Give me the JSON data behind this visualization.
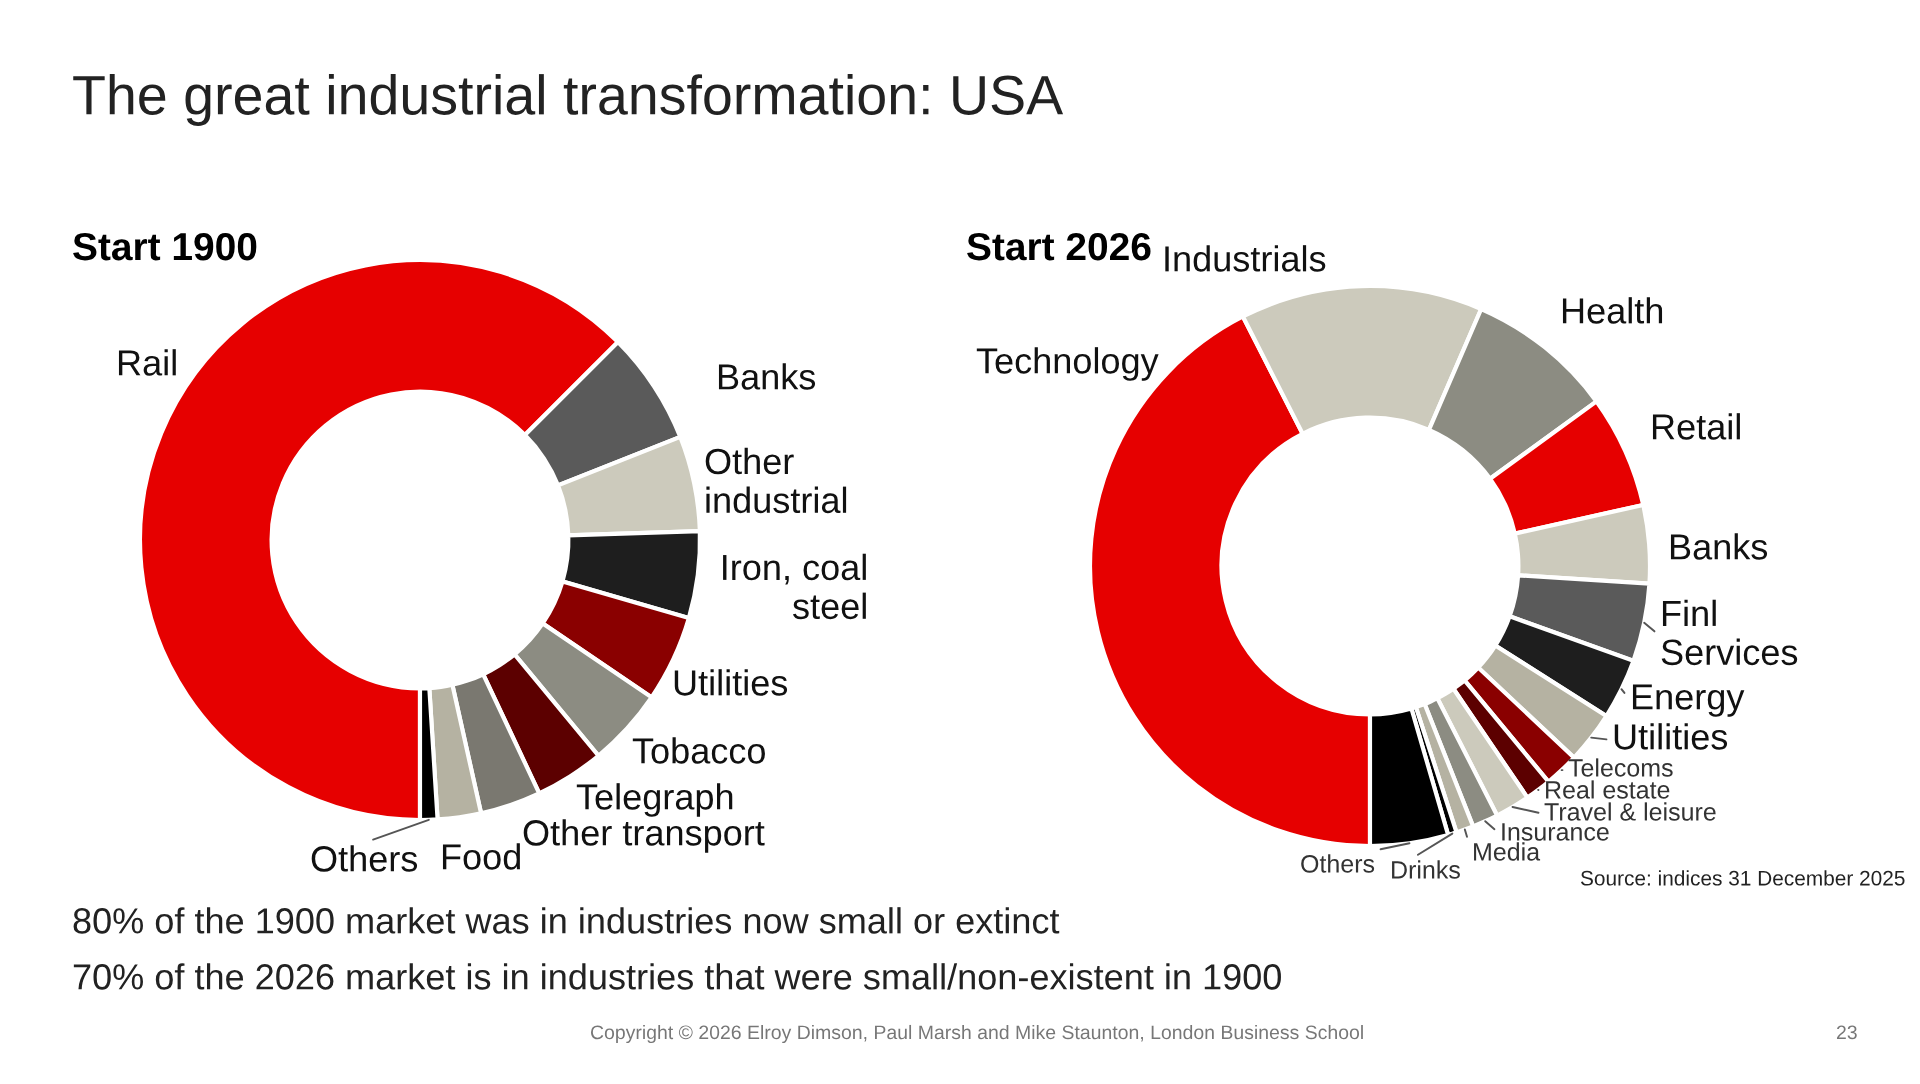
{
  "chart_data": [
    {
      "type": "donut",
      "title": "Start 1900",
      "categories": [
        "Rail",
        "Banks",
        "Other\nindustrial",
        "Iron, coal\nsteel",
        "Utilities",
        "Tobacco",
        "Telegraph",
        "Other transport",
        "Food",
        "Others"
      ],
      "values": [
        62.5,
        6.5,
        5.5,
        5,
        5,
        4.5,
        4,
        3.5,
        2.5,
        1
      ],
      "colors": [
        "#e60000",
        "#5a5a5a",
        "#cccabc",
        "#1e1e1e",
        "#8a0000",
        "#8c8c82",
        "#5c0000",
        "#7a7870",
        "#b5b2a2",
        "#000000"
      ],
      "legend": false,
      "annotations": [
        "The great industrial transformation: USA",
        "80% of the 1900 market was in industries now small or extinct",
        "70% of the 2026 market is in industries that were small/non-existent in 1900",
        "Copyright © 2026 Elroy Dimson, Paul Marsh and Mike Staunton, London Business School",
        "23"
      ]
    },
    {
      "type": "donut",
      "title": "Start 2026",
      "categories": [
        "Technology",
        "Industrials",
        "Health",
        "Retail",
        "Banks",
        "Finl\nServices",
        "Energy",
        "Utilities",
        "Telecoms",
        "Real estate",
        "Travel & leisure",
        "Insurance",
        "Media",
        "Drinks",
        "Others"
      ],
      "values": [
        42.5,
        14,
        8.5,
        6.5,
        4.5,
        4.5,
        3.5,
        3,
        2,
        1.5,
        2,
        1.5,
        1,
        0.5,
        4.5
      ],
      "colors": [
        "#e60000",
        "#cccabc",
        "#8c8c82",
        "#e60000",
        "#cccabc",
        "#5a5a5a",
        "#1e1e1e",
        "#b5b2a2",
        "#8a0000",
        "#5c0000",
        "#cccabc",
        "#8c8c82",
        "#b5b2a2",
        "#000000",
        "#000000"
      ],
      "legend": false,
      "annotations": [
        "Source: indices 31 December 2025"
      ]
    }
  ]
}
